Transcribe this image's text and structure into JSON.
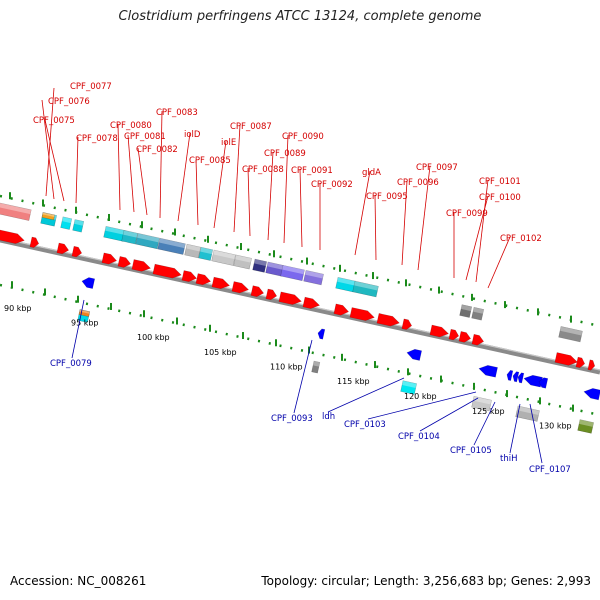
{
  "title": "Clostridium perfringens ATCC 13124, complete genome",
  "footer": {
    "accession": "Accession: NC_008261",
    "summary": "Topology: circular; Length: 3,256,683 bp; Genes: 2,993"
  },
  "colors": {
    "forward_gene": "#ff0000",
    "reverse_gene": "#0000ff",
    "label_forward": "#d40000",
    "label_reverse": "#0000aa",
    "backbone": "#8a8a8a",
    "tick": "#1a8a1a"
  },
  "scale_labels": [
    "90 kbp",
    "95 kbp",
    "100 kbp",
    "105 kbp",
    "110 kbp",
    "115 kbp",
    "120 kbp",
    "125 kbp",
    "130 kbp"
  ],
  "forward_labels": [
    "CPF_0077",
    "CPF_0076",
    "CPF_0075",
    "CPF_0078",
    "CPF_0080",
    "CPF_0081",
    "CPF_0082",
    "CPF_0083",
    "iolD",
    "CPF_0085",
    "iolE",
    "CPF_0087",
    "CPF_0088",
    "CPF_0089",
    "CPF_0090",
    "CPF_0091",
    "CPF_0092",
    "gldA",
    "CPF_0095",
    "CPF_0096",
    "CPF_0097",
    "CPF_0101",
    "CPF_0100",
    "CPF_0099",
    "CPF_0102"
  ],
  "reverse_labels": [
    "CPF_0079",
    "CPF_0093",
    "ldh",
    "CPF_0103",
    "CPF_0104",
    "CPF_0105",
    "thiH",
    "CPF_0107"
  ]
}
